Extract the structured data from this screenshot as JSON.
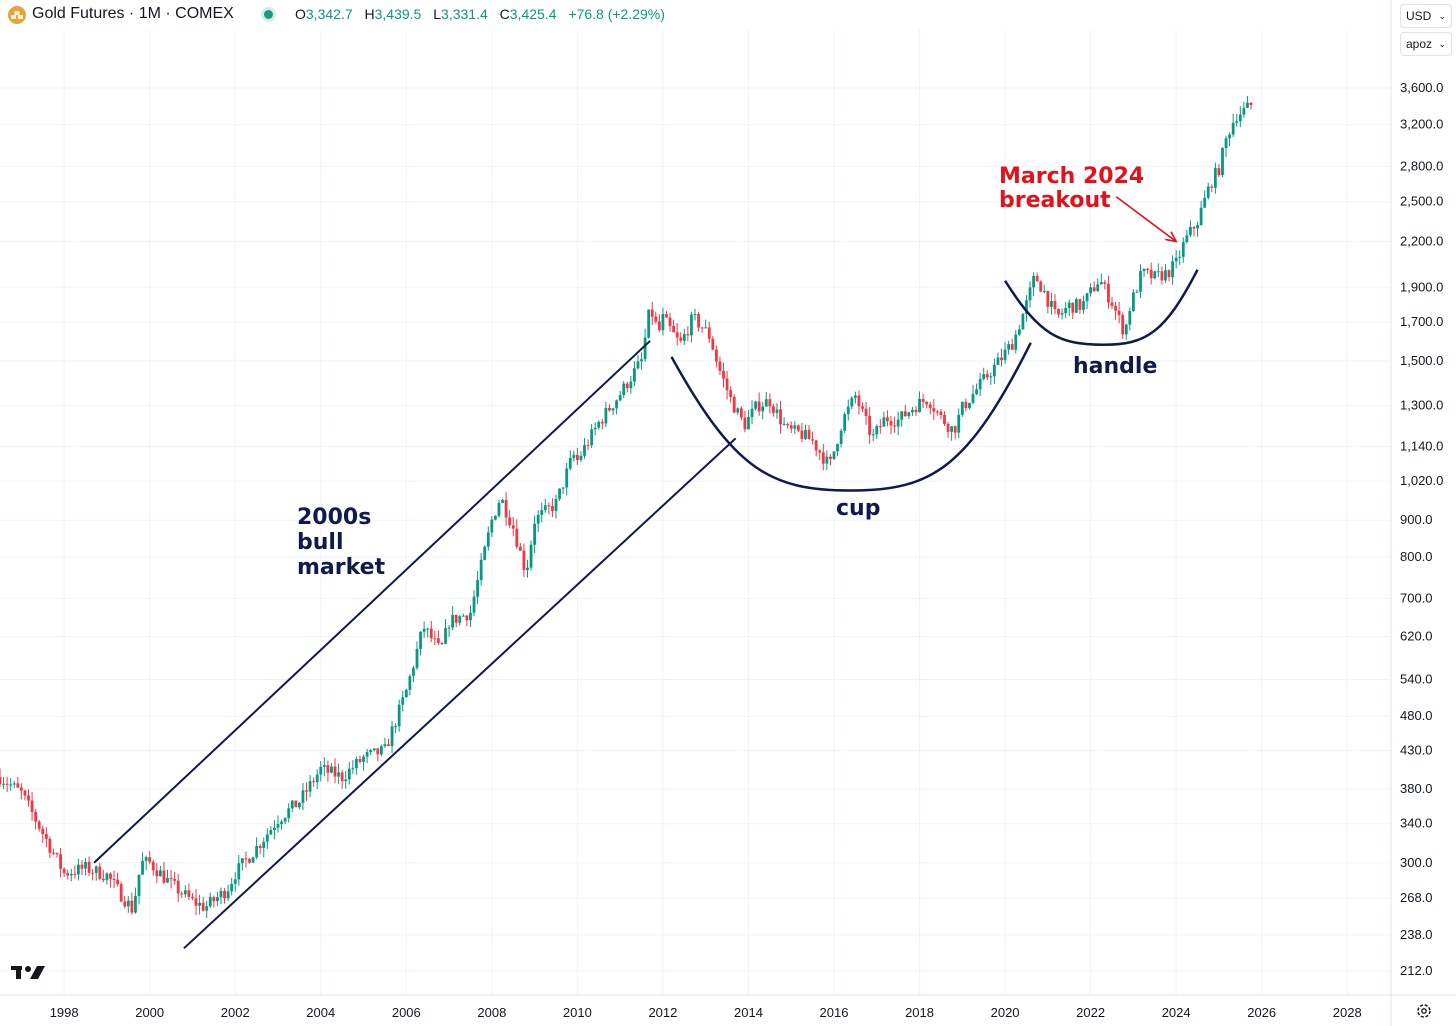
{
  "header": {
    "title": "Gold Futures · 1M · COMEX",
    "icon": "gold-bars-icon",
    "ohlc": [
      {
        "label": "O",
        "value": "3,342.7"
      },
      {
        "label": "H",
        "value": "3,439.5"
      },
      {
        "label": "L",
        "value": "3,331.4"
      },
      {
        "label": "C",
        "value": "3,425.4"
      }
    ],
    "change": "+76.8 (+2.29%)",
    "currency_selector": "USD",
    "unit_selector": "apoz"
  },
  "colors": {
    "up": "#089981",
    "down": "#f23645",
    "annotation": "#0f1b4c",
    "annotation_red": "#e3111a",
    "grid": "#f0f3fa"
  },
  "chart_data": {
    "type": "candlestick",
    "title": "Gold Futures · 1M · COMEX",
    "y_scale": "log",
    "ylim": [
      200,
      3900
    ],
    "xlim": [
      1996.5,
      2029.0
    ],
    "y_ticks": [
      {
        "value": 3600,
        "label": "3,600.0"
      },
      {
        "value": 3200,
        "label": "3,200.0"
      },
      {
        "value": 2800,
        "label": "2,800.0"
      },
      {
        "value": 2500,
        "label": "2,500.0"
      },
      {
        "value": 2200,
        "label": "2,200.0"
      },
      {
        "value": 1900,
        "label": "1,900.0"
      },
      {
        "value": 1700,
        "label": "1,700.0"
      },
      {
        "value": 1500,
        "label": "1,500.0"
      },
      {
        "value": 1300,
        "label": "1,300.0"
      },
      {
        "value": 1140,
        "label": "1,140.0"
      },
      {
        "value": 1020,
        "label": "1,020.0"
      },
      {
        "value": 900,
        "label": "900.0"
      },
      {
        "value": 800,
        "label": "800.0"
      },
      {
        "value": 700,
        "label": "700.0"
      },
      {
        "value": 620,
        "label": "620.0"
      },
      {
        "value": 540,
        "label": "540.0"
      },
      {
        "value": 480,
        "label": "480.0"
      },
      {
        "value": 430,
        "label": "430.0"
      },
      {
        "value": 380,
        "label": "380.0"
      },
      {
        "value": 340,
        "label": "340.0"
      },
      {
        "value": 300,
        "label": "300.0"
      },
      {
        "value": 268,
        "label": "268.0"
      },
      {
        "value": 238,
        "label": "238.0"
      },
      {
        "value": 212,
        "label": "212.0"
      }
    ],
    "x_ticks": [
      {
        "value": 1998,
        "label": "1998"
      },
      {
        "value": 2000,
        "label": "2000"
      },
      {
        "value": 2002,
        "label": "2002"
      },
      {
        "value": 2004,
        "label": "2004"
      },
      {
        "value": 2006,
        "label": "2006"
      },
      {
        "value": 2008,
        "label": "2008"
      },
      {
        "value": 2010,
        "label": "2010"
      },
      {
        "value": 2012,
        "label": "2012"
      },
      {
        "value": 2014,
        "label": "2014"
      },
      {
        "value": 2016,
        "label": "2016"
      },
      {
        "value": 2018,
        "label": "2018"
      },
      {
        "value": 2020,
        "label": "2020"
      },
      {
        "value": 2022,
        "label": "2022"
      },
      {
        "value": 2024,
        "label": "2024"
      },
      {
        "value": 2026,
        "label": "2026"
      },
      {
        "value": 2028,
        "label": "2028"
      }
    ],
    "price_path": [
      [
        1996.5,
        395
      ],
      [
        1997.0,
        375
      ],
      [
        1997.5,
        330
      ],
      [
        1998.0,
        290
      ],
      [
        1998.5,
        295
      ],
      [
        1999.0,
        288
      ],
      [
        1999.6,
        258
      ],
      [
        1999.8,
        300
      ],
      [
        2000.0,
        300
      ],
      [
        2000.5,
        280
      ],
      [
        2001.0,
        265
      ],
      [
        2001.3,
        260
      ],
      [
        2001.8,
        275
      ],
      [
        2002.0,
        290
      ],
      [
        2002.5,
        315
      ],
      [
        2003.0,
        345
      ],
      [
        2003.5,
        365
      ],
      [
        2004.0,
        405
      ],
      [
        2004.5,
        395
      ],
      [
        2005.0,
        420
      ],
      [
        2005.5,
        430
      ],
      [
        2006.0,
        520
      ],
      [
        2006.4,
        640
      ],
      [
        2006.8,
        590
      ],
      [
        2007.0,
        650
      ],
      [
        2007.5,
        670
      ],
      [
        2008.0,
        900
      ],
      [
        2008.2,
        970
      ],
      [
        2008.5,
        880
      ],
      [
        2008.8,
        760
      ],
      [
        2009.0,
        900
      ],
      [
        2009.5,
        950
      ],
      [
        2009.9,
        1110
      ],
      [
        2010.0,
        1090
      ],
      [
        2010.5,
        1230
      ],
      [
        2011.0,
        1350
      ],
      [
        2011.5,
        1500
      ],
      [
        2011.7,
        1780
      ],
      [
        2011.9,
        1640
      ],
      [
        2012.0,
        1720
      ],
      [
        2012.4,
        1580
      ],
      [
        2012.7,
        1720
      ],
      [
        2012.9,
        1680
      ],
      [
        2013.1,
        1620
      ],
      [
        2013.3,
        1470
      ],
      [
        2013.6,
        1320
      ],
      [
        2013.9,
        1220
      ],
      [
        2014.2,
        1300
      ],
      [
        2014.5,
        1320
      ],
      [
        2014.9,
        1200
      ],
      [
        2015.2,
        1190
      ],
      [
        2015.5,
        1160
      ],
      [
        2015.9,
        1070
      ],
      [
        2016.2,
        1240
      ],
      [
        2016.5,
        1340
      ],
      [
        2016.9,
        1170
      ],
      [
        2017.2,
        1250
      ],
      [
        2017.5,
        1240
      ],
      [
        2017.9,
        1300
      ],
      [
        2018.2,
        1330
      ],
      [
        2018.5,
        1250
      ],
      [
        2018.8,
        1200
      ],
      [
        2019.0,
        1290
      ],
      [
        2019.5,
        1410
      ],
      [
        2019.9,
        1510
      ],
      [
        2020.2,
        1600
      ],
      [
        2020.5,
        1800
      ],
      [
        2020.7,
        1970
      ],
      [
        2020.9,
        1880
      ],
      [
        2021.2,
        1720
      ],
      [
        2021.5,
        1790
      ],
      [
        2021.8,
        1790
      ],
      [
        2022.2,
        1950
      ],
      [
        2022.5,
        1810
      ],
      [
        2022.8,
        1640
      ],
      [
        2022.9,
        1770
      ],
      [
        2023.2,
        1990
      ],
      [
        2023.5,
        1960
      ],
      [
        2023.8,
        1990
      ],
      [
        2024.0,
        2050
      ],
      [
        2024.2,
        2200
      ],
      [
        2024.5,
        2350
      ],
      [
        2024.8,
        2650
      ],
      [
        2025.0,
        2780
      ],
      [
        2025.2,
        3100
      ],
      [
        2025.4,
        3300
      ],
      [
        2025.6,
        3350
      ],
      [
        2025.8,
        3425
      ]
    ],
    "annotations": [
      {
        "type": "text",
        "lines": [
          "2000s",
          "bull",
          "market"
        ],
        "color": "#0f1b4c"
      },
      {
        "type": "text",
        "lines": [
          "cup"
        ],
        "color": "#0f1b4c"
      },
      {
        "type": "text",
        "lines": [
          "handle"
        ],
        "color": "#0f1b4c"
      },
      {
        "type": "text",
        "lines": [
          "March 2024",
          "breakout"
        ],
        "color": "#e3111a"
      },
      {
        "type": "trendline",
        "name": "channel-upper",
        "from": [
          1998.7,
          300
        ],
        "to": [
          2011.7,
          1600
        ]
      },
      {
        "type": "trendline",
        "name": "channel-lower",
        "from": [
          2000.8,
          228
        ],
        "to": [
          2013.7,
          1170
        ]
      },
      {
        "type": "arc",
        "name": "cup-arc",
        "from": [
          2012.2,
          1520
        ],
        "bottom": [
          2016.4,
          990
        ],
        "to": [
          2020.6,
          1590
        ]
      },
      {
        "type": "arc",
        "name": "handle-arc",
        "from": [
          2020.0,
          1940
        ],
        "bottom": [
          2022.3,
          1580
        ],
        "to": [
          2024.5,
          2010
        ]
      },
      {
        "type": "arrow",
        "name": "breakout-arrow",
        "from": [
          2022.6,
          2540
        ],
        "to": [
          2024.0,
          2200
        ]
      }
    ]
  }
}
